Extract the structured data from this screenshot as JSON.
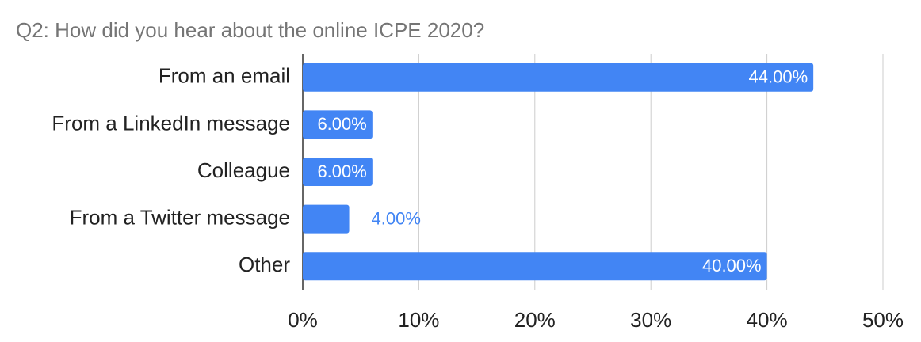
{
  "chart_data": {
    "type": "bar",
    "orientation": "horizontal",
    "title": "Q2: How did you hear about the online ICPE 2020?",
    "categories": [
      "From an email",
      "From a LinkedIn message",
      "Colleague",
      "From a Twitter message",
      "Other"
    ],
    "values": [
      44,
      6,
      6,
      4,
      40
    ],
    "value_labels": [
      "44.00%",
      "6.00%",
      "6.00%",
      "4.00%",
      "40.00%"
    ],
    "color": "#4285f4",
    "xlim": [
      0,
      50
    ],
    "xticks": [
      {
        "value": 0,
        "label": "0%"
      },
      {
        "value": 10,
        "label": "10%"
      },
      {
        "value": 20,
        "label": "20%"
      },
      {
        "value": 30,
        "label": "30%"
      },
      {
        "value": 40,
        "label": "40%"
      },
      {
        "value": 50,
        "label": "50%"
      }
    ],
    "grid": true
  }
}
